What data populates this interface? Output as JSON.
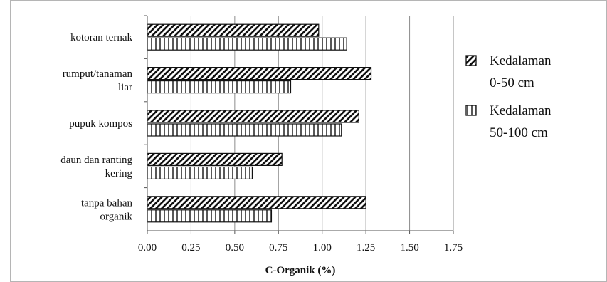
{
  "chart_data": {
    "type": "bar",
    "orientation": "horizontal",
    "categories": [
      "tanpa bahan organik",
      "daun dan ranting kering",
      "pupuk kompos",
      "rumput/tanaman liar",
      "kotoran ternak"
    ],
    "category_label_lines": [
      [
        "tanpa bahan",
        "organik"
      ],
      [
        "daun dan ranting",
        "kering"
      ],
      [
        "pupuk kompos"
      ],
      [
        "rumput/tanaman",
        "liar"
      ],
      [
        "kotoran ternak"
      ]
    ],
    "series": [
      {
        "name_lines": [
          "Kedalaman",
          "0-50 cm"
        ],
        "pattern": "diagonal-hatch",
        "values": [
          1.25,
          0.77,
          1.21,
          1.28,
          0.98
        ]
      },
      {
        "name_lines": [
          "Kedalaman",
          "50-100 cm"
        ],
        "pattern": "vertical-hatch",
        "values": [
          0.71,
          0.6,
          1.11,
          0.82,
          1.14
        ]
      }
    ],
    "xlabel": "C-Organik (%)",
    "ylabel": "",
    "xlim": [
      0,
      1.75
    ],
    "x_ticks": [
      "0.00",
      "0.25",
      "0.50",
      "0.75",
      "1.00",
      "1.25",
      "1.50",
      "1.75"
    ],
    "grid": "vertical",
    "legend_position": "right",
    "colors": {
      "bar_outline": "#111111",
      "grid": "#8c8c8c",
      "background": "#ffffff"
    }
  }
}
